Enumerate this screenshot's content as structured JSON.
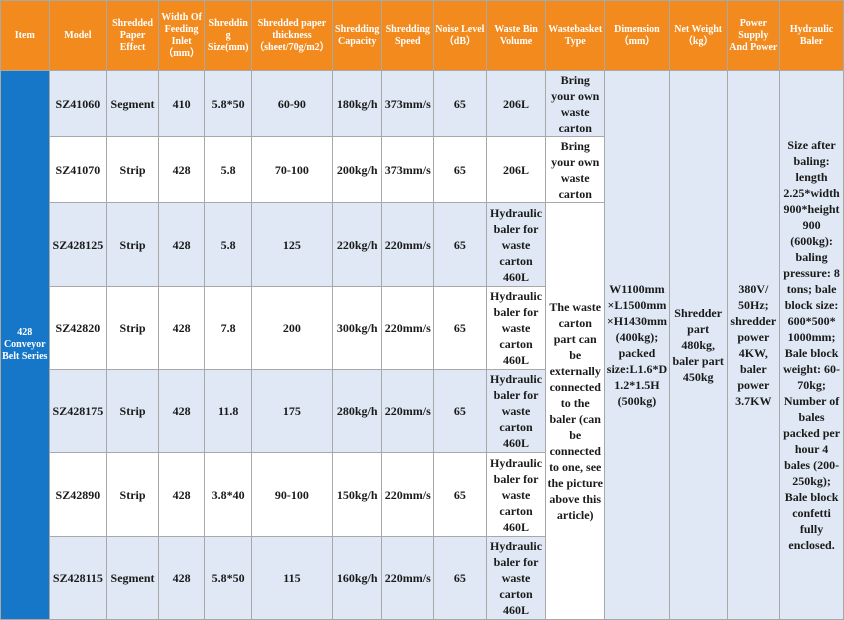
{
  "headers": [
    "Item",
    "Model",
    "Shredded Paper Effect",
    "Width Of Feeding Inlet （mm）",
    "Shredding Size(mm)",
    "Shredded paper thickness （sheet/70g/m2）",
    "Shredding Capacity",
    "Shredding Speed",
    "Noise Level （dB）",
    "Waste Bin Volume",
    "Wastebasket Type",
    "Dimension （mm）",
    "Net Weight （kg）",
    "Power Supply And Power",
    "Hydraulic Baler"
  ],
  "series": "428 Conveyor Belt Series",
  "rows": [
    {
      "model": "SZ41060",
      "effect": "Segment",
      "width": "410",
      "size": "5.8*50",
      "thickness": "60-90",
      "capacity": "180kg/h",
      "speed": "373mm/s",
      "noise": "65",
      "bin": "206L",
      "basket": "Bring your own waste carton"
    },
    {
      "model": "SZ41070",
      "effect": "Strip",
      "width": "428",
      "size": "5.8",
      "thickness": "70-100",
      "capacity": "200kg/h",
      "speed": "373mm/s",
      "noise": "65",
      "bin": "206L",
      "basket": "Bring your own waste carton"
    },
    {
      "model": "SZ428125",
      "effect": "Strip",
      "width": "428",
      "size": "5.8",
      "thickness": "125",
      "capacity": "220kg/h",
      "speed": "220mm/s",
      "noise": "65",
      "bin": "Hydraulic baler for waste carton 460L"
    },
    {
      "model": "SZ42820",
      "effect": "Strip",
      "width": "428",
      "size": "7.8",
      "thickness": "200",
      "capacity": "300kg/h",
      "speed": "220mm/s",
      "noise": "65",
      "bin": "Hydraulic baler for waste carton 460L"
    },
    {
      "model": "SZ428175",
      "effect": "Strip",
      "width": "428",
      "size": "11.8",
      "thickness": "175",
      "capacity": "280kg/h",
      "speed": "220mm/s",
      "noise": "65",
      "bin": "Hydraulic baler for waste carton 460L"
    },
    {
      "model": "SZ42890",
      "effect": "Strip",
      "width": "428",
      "size": "3.8*40",
      "thickness": "90-100",
      "capacity": "150kg/h",
      "speed": "220mm/s",
      "noise": "65",
      "bin": "Hydraulic baler for waste carton 460L"
    },
    {
      "model": "SZ428115",
      "effect": "Segment",
      "width": "428",
      "size": "5.8*50",
      "thickness": "115",
      "capacity": "160kg/h",
      "speed": "220mm/s",
      "noise": "65",
      "bin": "Hydraulic baler for waste carton 460L"
    }
  ],
  "merged": {
    "wastebasket": "The waste carton part can be externally connected to the baler (can be connected to one, see the picture above this article)",
    "dimension": "W1100mm ×L1500mm ×H1430mm (400kg); packed size:L1.6*D1.2*1.5H (500kg)",
    "net_weight": "Shredder part 480kg, baler part 450kg",
    "power": "380V/ 50Hz; shredder power 4KW, baler power 3.7KW",
    "baler": "Size after baling: length 2.25*width 900*height 900 (600kg): baling pressure: 8 tons; bale block size: 600*500* 1000mm; Bale block weight: 60-70kg; Number of bales packed per hour 4 bales (200-250kg); Bale block confetti fully enclosed."
  },
  "colors": {
    "header_bg": "#f28a1d",
    "series_bg": "#1677c9",
    "row_alt": "#dfe8f4"
  }
}
